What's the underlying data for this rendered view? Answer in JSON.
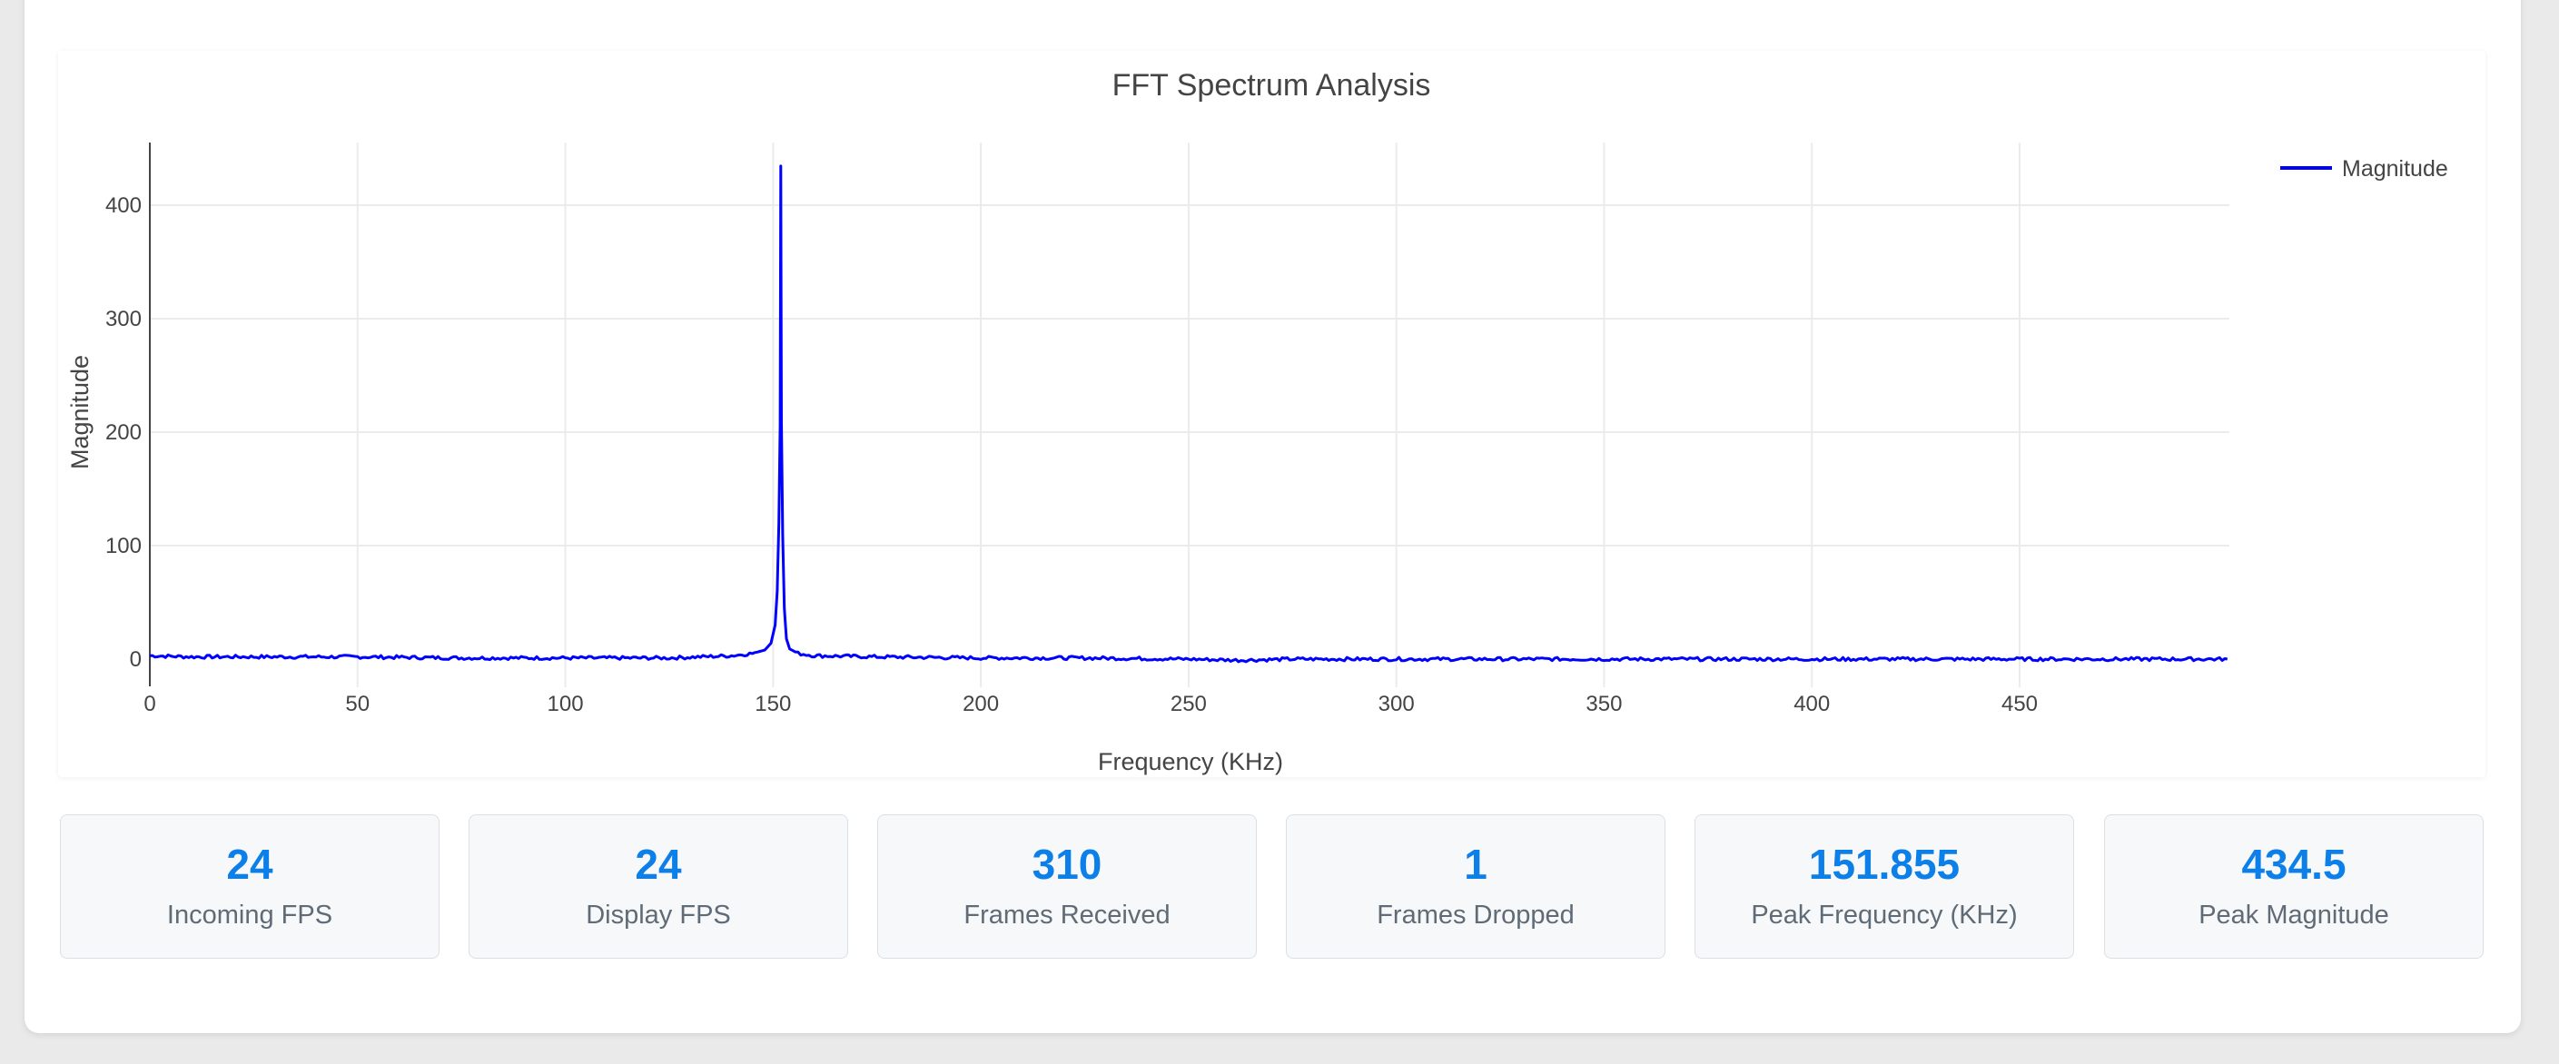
{
  "chart_data": {
    "type": "line",
    "title": "FFT Spectrum Analysis",
    "xlabel": "Frequency (KHz)",
    "ylabel": "Magnitude",
    "xlim": [
      0,
      500
    ],
    "ylim": [
      -25,
      460
    ],
    "x_ticks": [
      0,
      50,
      100,
      150,
      200,
      250,
      300,
      350,
      400,
      450
    ],
    "y_ticks": [
      0,
      100,
      200,
      300,
      400
    ],
    "grid": true,
    "legend_position": "top-right",
    "series": [
      {
        "name": "Magnitude",
        "color": "#0000ff",
        "x": [
          0,
          10,
          30,
          50,
          75,
          100,
          125,
          140,
          145,
          148,
          149.5,
          150.5,
          151,
          151.4,
          151.7,
          151.855,
          152.0,
          152.3,
          152.7,
          153.2,
          154,
          156,
          160,
          175,
          200,
          225,
          250,
          262,
          275,
          300,
          325,
          350,
          375,
          400,
          425,
          450,
          475,
          500
        ],
        "y": [
          3,
          2,
          2,
          2,
          1,
          1,
          1,
          3,
          5,
          8,
          14,
          30,
          60,
          120,
          205,
          434.5,
          210,
          110,
          45,
          18,
          9,
          5,
          3,
          2,
          1,
          1,
          0,
          -1,
          0,
          0,
          0,
          0,
          0,
          0,
          0,
          0,
          0,
          0
        ]
      }
    ]
  },
  "stats": [
    {
      "value": "24",
      "label": "Incoming FPS"
    },
    {
      "value": "24",
      "label": "Display FPS"
    },
    {
      "value": "310",
      "label": "Frames Received"
    },
    {
      "value": "1",
      "label": "Frames Dropped"
    },
    {
      "value": "151.855",
      "label": "Peak Frequency (KHz)"
    },
    {
      "value": "434.5",
      "label": "Peak Magnitude"
    }
  ]
}
